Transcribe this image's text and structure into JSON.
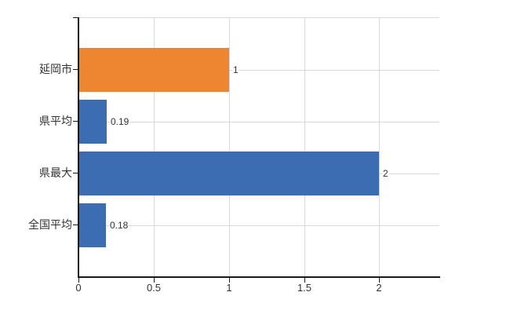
{
  "chart": {
    "background": "#ffffff"
  },
  "chart_data": {
    "type": "bar",
    "orientation": "horizontal",
    "title": "",
    "xlabel": "",
    "ylabel": "",
    "categories": [
      "延岡市",
      "県平均",
      "県最大",
      "全国平均"
    ],
    "values": [
      1,
      0.19,
      2,
      0.18
    ],
    "value_labels": [
      "1",
      "0.19",
      "2",
      "0.18"
    ],
    "bar_colors": [
      "#ee8531",
      "#3c6db3",
      "#3c6db3",
      "#3c6db3"
    ],
    "x_ticks": [
      0,
      0.5,
      1,
      1.5,
      2
    ],
    "x_tick_labels": [
      "0",
      "0.5",
      "1",
      "1.5",
      "2"
    ],
    "xlim": [
      0,
      2.4
    ],
    "grid": true,
    "legend": "none"
  },
  "colors": {
    "axis": "#1a1a1a",
    "grid": "#d9d9d9",
    "text": "#333333"
  }
}
